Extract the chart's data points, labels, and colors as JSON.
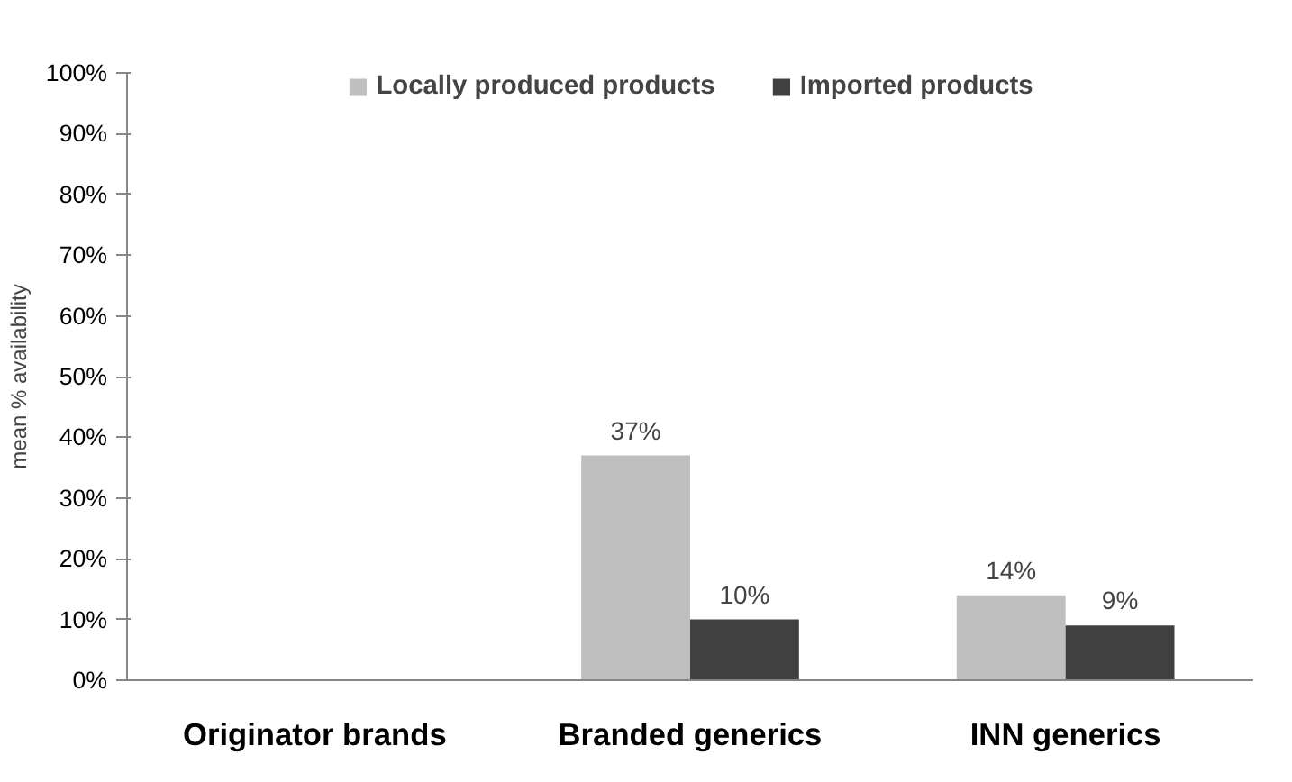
{
  "chart_data": {
    "type": "bar",
    "ylabel": "mean % availability",
    "categories": [
      "Originator brands",
      "Branded generics",
      "INN generics"
    ],
    "series": [
      {
        "name": "Locally produced products",
        "color": "#bfbfbf",
        "values": [
          null,
          37,
          14
        ],
        "value_labels": [
          null,
          "37%",
          "14%"
        ]
      },
      {
        "name": "Imported products",
        "color": "#404040",
        "values": [
          null,
          10,
          9
        ],
        "value_labels": [
          null,
          "10%",
          "9%"
        ]
      }
    ],
    "ylim": [
      0,
      100
    ],
    "yticks": [
      {
        "value": 0,
        "label": "0%"
      },
      {
        "value": 10,
        "label": "10%"
      },
      {
        "value": 20,
        "label": "20%"
      },
      {
        "value": 30,
        "label": "30%"
      },
      {
        "value": 40,
        "label": "40%"
      },
      {
        "value": 50,
        "label": "50%"
      },
      {
        "value": 60,
        "label": "60%"
      },
      {
        "value": 70,
        "label": "70%"
      },
      {
        "value": 80,
        "label": "80%"
      },
      {
        "value": 90,
        "label": "90%"
      },
      {
        "value": 100,
        "label": "100%"
      }
    ],
    "grid": false,
    "legend": "top"
  }
}
